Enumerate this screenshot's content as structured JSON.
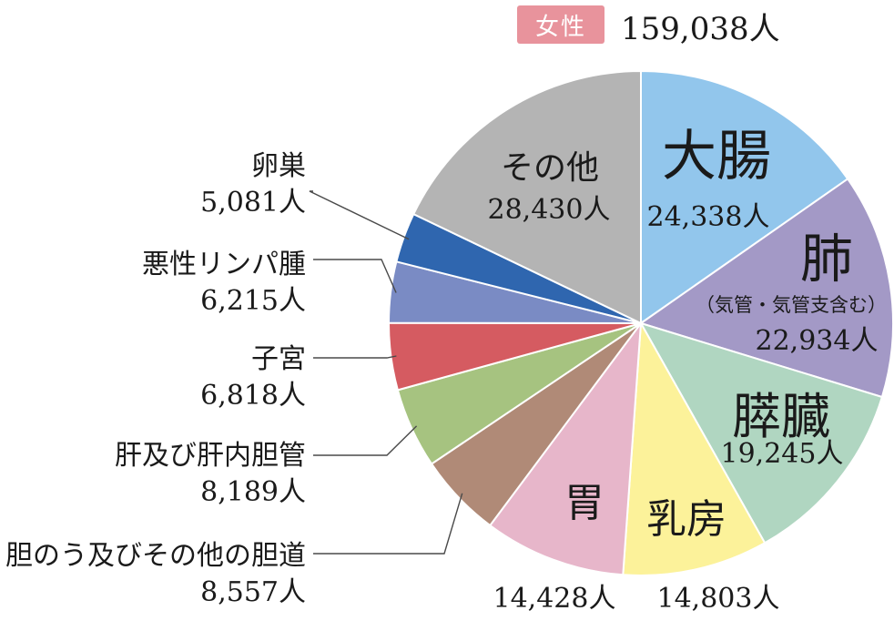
{
  "header": {
    "badge": "女性",
    "total": "159,038人"
  },
  "chart_data": {
    "type": "pie",
    "title": "",
    "categories": [
      "大腸",
      "肺",
      "膵臓",
      "乳房",
      "胃",
      "胆のう及びその他の胆道",
      "肝及び肝内胆管",
      "子宮",
      "悪性リンパ腫",
      "卵巣",
      "その他"
    ],
    "values": [
      24338,
      22934,
      19245,
      14803,
      14428,
      8557,
      8189,
      6818,
      6215,
      5081,
      28430
    ],
    "value_labels": [
      "24,338人",
      "22,934人",
      "19,245人",
      "14,803人",
      "14,428人",
      "8,557人",
      "8,189人",
      "6,818人",
      "6,215人",
      "5,081人",
      "28,430人"
    ],
    "sublabels": {
      "肺": "（気管・気管支含む）"
    },
    "colors": [
      "#92c6ec",
      "#a399c6",
      "#b0d6c1",
      "#fcf29a",
      "#e7b6ca",
      "#b08a77",
      "#a6c380",
      "#d55b61",
      "#7a8bc4",
      "#2f66af",
      "#b4b4b4"
    ],
    "start": "12 o'clock",
    "direction": "clockwise"
  }
}
